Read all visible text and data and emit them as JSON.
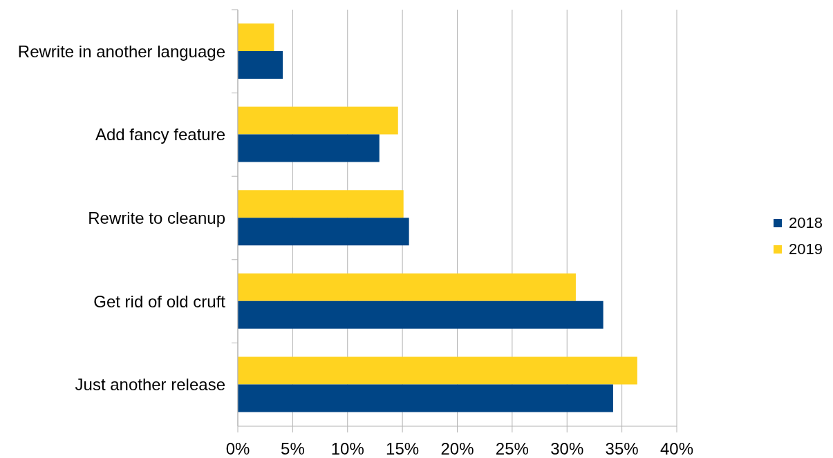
{
  "chart_data": {
    "type": "bar",
    "orientation": "horizontal",
    "categories": [
      "Rewrite in another language",
      "Add fancy feature",
      "Rewrite to cleanup",
      "Get rid of old cruft",
      "Just another release"
    ],
    "series": [
      {
        "name": "2018",
        "color": "#004586",
        "values": [
          4.1,
          12.9,
          15.6,
          33.3,
          34.2
        ]
      },
      {
        "name": "2019",
        "color": "#ffd320",
        "values": [
          3.3,
          14.6,
          15.1,
          30.8,
          36.4
        ]
      }
    ],
    "xlim": [
      0,
      40
    ],
    "xticks": [
      {
        "value": 0,
        "label": "0%"
      },
      {
        "value": 5,
        "label": "5%"
      },
      {
        "value": 10,
        "label": "10%"
      },
      {
        "value": 15,
        "label": "15%"
      },
      {
        "value": 20,
        "label": "20%"
      },
      {
        "value": 25,
        "label": "25%"
      },
      {
        "value": 30,
        "label": "30%"
      },
      {
        "value": 35,
        "label": "35%"
      },
      {
        "value": 40,
        "label": "40%"
      }
    ],
    "grid": "x",
    "legend": "right"
  }
}
